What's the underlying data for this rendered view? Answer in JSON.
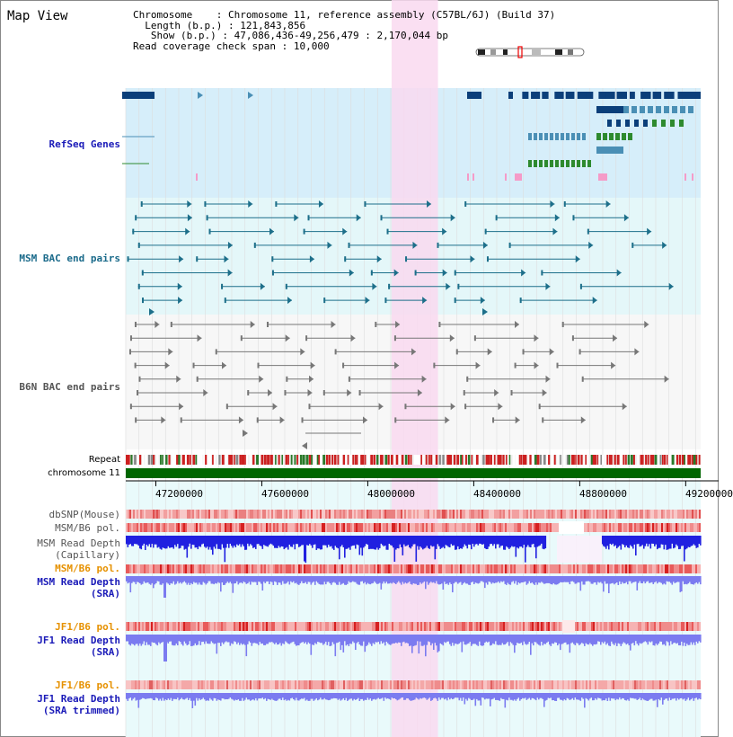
{
  "title": "Map View",
  "info": {
    "chromosome_label": "Chromosome",
    "chromosome_value": "Chromosome 11, reference assembly (C57BL/6J) (Build 37)",
    "length_label": "Length (b.p.)",
    "length_value": "121,843,856",
    "show_label": "Show (b.p.)",
    "show_value": "47,086,436-49,256,479 : 2,170,044 bp",
    "coverage_label": "Read coverage check span",
    "coverage_value": "10,000"
  },
  "tracks": {
    "refseq": "RefSeq Genes",
    "msm_bac": "MSM BAC end pairs",
    "b6n_bac": "B6N BAC end pairs",
    "repeat": "Repeat",
    "chromosome": "chromosome 11",
    "dbsnp": "dbSNP(Mouse)",
    "msm_b6_pol_1": "MSM/B6 pol.",
    "msm_read_depth_cap_1": "MSM Read Depth",
    "msm_read_depth_cap_2": "(Capillary)",
    "msm_b6_pol_2": "MSM/B6 pol.",
    "msm_read_depth_sra_1": "MSM Read Depth",
    "msm_read_depth_sra_2": "(SRA)",
    "jf1_b6_pol_1": "JF1/B6 pol.",
    "jf1_read_depth_sra_1": "JF1 Read Depth",
    "jf1_read_depth_sra_2": "(SRA)",
    "jf1_b6_pol_2": "JF1/B6 pol.",
    "jf1_read_depth_trim_1": "JF1 Read Depth",
    "jf1_read_depth_trim_2": "(SRA trimmed)"
  },
  "axis": {
    "range_bp": [
      47086436,
      49256479
    ],
    "ticks": [
      "47200000",
      "47600000",
      "48000000",
      "48400000",
      "48800000",
      "49200000"
    ],
    "tick_values": [
      47200000,
      47600000,
      48000000,
      48400000,
      48800000,
      49200000
    ]
  },
  "highlight_bp": [
    48090000,
    48265000
  ],
  "colors": {
    "refseq_bg": "#d6eefa",
    "msm_bg": "#e4f7f9",
    "highlight": "#f9d9f0",
    "dark_gene": "#0b3f7a",
    "mid_gene": "#4a8fb5",
    "green_gene": "#2e8a2e",
    "msm_pair": "#1d6f8a",
    "b6n_pair": "#777777",
    "chromosome_bar": "#006600",
    "label_blue": "#1a1ab8",
    "label_teal": "#1a6a8a",
    "label_gray": "#555555",
    "label_orange": "#e69100",
    "depth_blue": "#2020e0",
    "depth_light": "#7b7bf0",
    "pol_red": "#e03030"
  }
}
